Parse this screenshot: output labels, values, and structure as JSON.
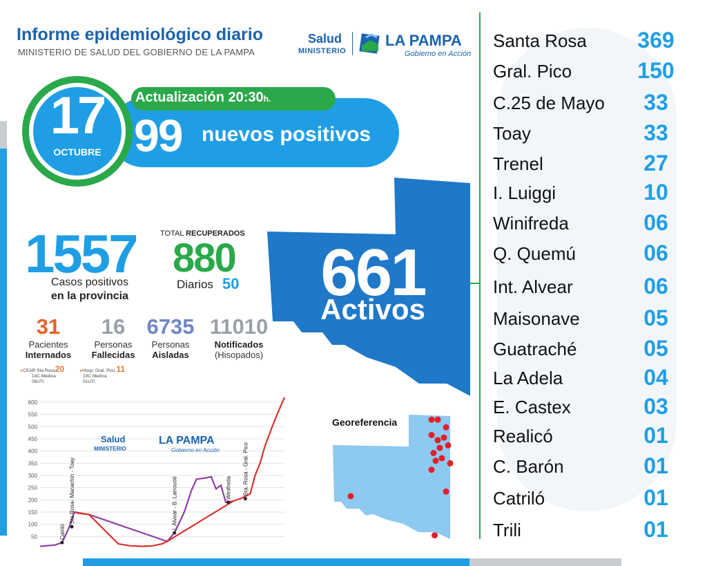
{
  "header": {
    "title": "Informe epidemiológico diario",
    "subtitle": "MINISTERIO DE SALUD DEL GOBIERNO DE LA PAMPA"
  },
  "logo": {
    "salud": "Salud",
    "ministerio": "MINISTERIO",
    "la_pampa": "LA PAMPA",
    "gobierno": "Gobierno en Acción"
  },
  "date": {
    "day": "17",
    "month": "OCTUBRE"
  },
  "update": {
    "label": "Actualización 20:30",
    "suffix": "h."
  },
  "new_positives": {
    "value": "99",
    "label": "nuevos positivos"
  },
  "total_positives": {
    "value": "1557",
    "label_line1": "Casos positivos",
    "label_line2": "en la provincia"
  },
  "recovered": {
    "label_prefix": "TOTAL",
    "label_bold": "RECUPERADOS",
    "value": "880",
    "daily_label": "Diarios",
    "daily_value": "50"
  },
  "stats": [
    {
      "value": "31",
      "line1": "Pacientes",
      "line2": "Internados",
      "color": "#e8602c"
    },
    {
      "value": "16",
      "line1": "Personas",
      "line2": "Fallecidas",
      "color": "#9aa0a6"
    },
    {
      "value": "6735",
      "line1": "Personas",
      "line2": "Aisladas",
      "color": "#6f86c4"
    },
    {
      "value": "11010",
      "line1": "Notificados",
      "line2": "(Hisopados)",
      "color": "#9aa0a6"
    }
  ],
  "hospitals": [
    {
      "name": "CEAR Sta.Rosa",
      "total": "20",
      "line1": "14C.Médica",
      "line2": "06UTI"
    },
    {
      "name": "Hosp. Gral. Pico",
      "total": "11",
      "line1": "10C.Médica",
      "line2": "01UTI"
    }
  ],
  "active": {
    "value": "661",
    "label": "Activos"
  },
  "georef": {
    "label": "Georeferencia"
  },
  "localities": [
    {
      "name": "Santa Rosa",
      "value": "369"
    },
    {
      "name": "Gral. Pico",
      "value": "150"
    },
    {
      "name": "C.25 de Mayo",
      "value": "33"
    },
    {
      "name": "Toay",
      "value": "33"
    },
    {
      "name": "Trenel",
      "value": "27"
    },
    {
      "name": "I. Luiggi",
      "value": "10"
    },
    {
      "name": "Winifreda",
      "value": "06"
    },
    {
      "name": "Q. Quemú",
      "value": "06"
    },
    {
      "name": "Int. Alvear",
      "value": "06"
    },
    {
      "name": "Maisonave",
      "value": "05"
    },
    {
      "name": "Guatraché",
      "value": "05"
    },
    {
      "name": "La Adela",
      "value": "04"
    },
    {
      "name": "E. Castex",
      "value": "03"
    },
    {
      "name": "Realicó",
      "value": "01"
    },
    {
      "name": "C. Barón",
      "value": "01"
    },
    {
      "name": "Catriló",
      "value": "01"
    },
    {
      "name": "Trili",
      "value": "01"
    }
  ],
  "chart_data": {
    "type": "line",
    "ylim": [
      0,
      600
    ],
    "yticks": [
      "600",
      "550",
      "500",
      "450",
      "400",
      "350",
      "300",
      "250",
      "200",
      "150",
      "100",
      "50"
    ],
    "annotations": [
      {
        "label": "Catriló",
        "at": 9
      },
      {
        "label": "Sta Rosa- Macachín - Toay",
        "at": 13
      },
      {
        "label": "I. Alvear - B. Larroudé",
        "at": 55
      },
      {
        "label": "Winifreda",
        "at": 77
      },
      {
        "label": "Sta. Rosa - Gral. Pico",
        "at": 84
      }
    ],
    "series": [
      {
        "color": "#8e3fa3",
        "points": [
          [
            0,
            10
          ],
          [
            6,
            15
          ],
          [
            9,
            25
          ],
          [
            12,
            90
          ],
          [
            14,
            150
          ],
          [
            16,
            145
          ],
          [
            20,
            140
          ],
          [
            52,
            30
          ],
          [
            55,
            65
          ],
          [
            59,
            150
          ],
          [
            62,
            240
          ],
          [
            64,
            285
          ],
          [
            68,
            290
          ],
          [
            70,
            295
          ],
          [
            72,
            245
          ],
          [
            74,
            260
          ],
          [
            76,
            190
          ],
          [
            79,
            195
          ]
        ]
      },
      {
        "color": "#d8322b",
        "points": [
          [
            14,
            150
          ],
          [
            20,
            140
          ],
          [
            24,
            100
          ],
          [
            28,
            60
          ],
          [
            32,
            20
          ],
          [
            37,
            12
          ],
          [
            42,
            10
          ],
          [
            46,
            12
          ],
          [
            50,
            20
          ],
          [
            52,
            30
          ],
          [
            79,
            195
          ],
          [
            82,
            205
          ],
          [
            86,
            225
          ],
          [
            88,
            300
          ],
          [
            90,
            350
          ],
          [
            92,
            420
          ],
          [
            95,
            500
          ],
          [
            97,
            550
          ],
          [
            100,
            620
          ]
        ]
      }
    ]
  },
  "map_points": [
    [
      0.22,
      0.06
    ],
    [
      0.28,
      0.06
    ],
    [
      0.36,
      0.12
    ],
    [
      0.22,
      0.18
    ],
    [
      0.28,
      0.22
    ],
    [
      0.34,
      0.2
    ],
    [
      0.3,
      0.28
    ],
    [
      0.24,
      0.32
    ],
    [
      0.38,
      0.26
    ],
    [
      0.26,
      0.38
    ],
    [
      0.32,
      0.36
    ],
    [
      0.4,
      0.4
    ],
    [
      0.22,
      0.45
    ],
    [
      0.36,
      0.62
    ],
    [
      -0.7,
      0.7
    ],
    [
      0.25,
      0.96
    ]
  ]
}
